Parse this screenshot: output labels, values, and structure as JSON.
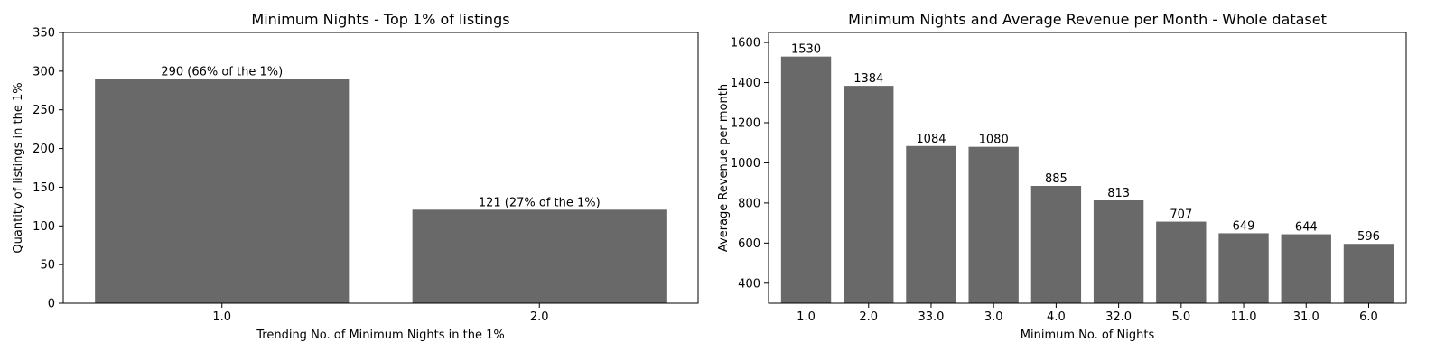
{
  "colors": {
    "bar": "#696969",
    "axis": "#000000",
    "background": "#ffffff"
  },
  "chart_data": [
    {
      "type": "bar",
      "title": "Minimum Nights - Top 1% of listings",
      "xlabel": "Trending No. of Minimum Nights in the 1%",
      "ylabel": "Quantity of listings in the 1%",
      "categories": [
        "1.0",
        "2.0"
      ],
      "values": [
        290,
        121
      ],
      "data_labels": [
        "290 (66% of the 1%)",
        "121 (27% of the 1%)"
      ],
      "ylim": [
        0,
        350
      ],
      "yticks": [
        "0",
        "50",
        "100",
        "150",
        "200",
        "250",
        "300",
        "350"
      ],
      "grid": false,
      "legend": "none"
    },
    {
      "type": "bar",
      "title": "Minimum Nights and Average Revenue per Month - Whole dataset",
      "xlabel": "Minimum No. of Nights",
      "ylabel": "Average Revenue per month",
      "categories": [
        "1.0",
        "2.0",
        "33.0",
        "3.0",
        "4.0",
        "32.0",
        "5.0",
        "11.0",
        "31.0",
        "6.0"
      ],
      "values": [
        1530,
        1384,
        1084,
        1080,
        885,
        813,
        707,
        649,
        644,
        596
      ],
      "data_labels": [
        "1530",
        "1384",
        "1084",
        "1080",
        "885",
        "813",
        "707",
        "649",
        "644",
        "596"
      ],
      "ylim": [
        300,
        1650
      ],
      "yticks": [
        "400",
        "600",
        "800",
        "1000",
        "1200",
        "1400",
        "1600"
      ],
      "grid": false,
      "legend": "none"
    }
  ]
}
